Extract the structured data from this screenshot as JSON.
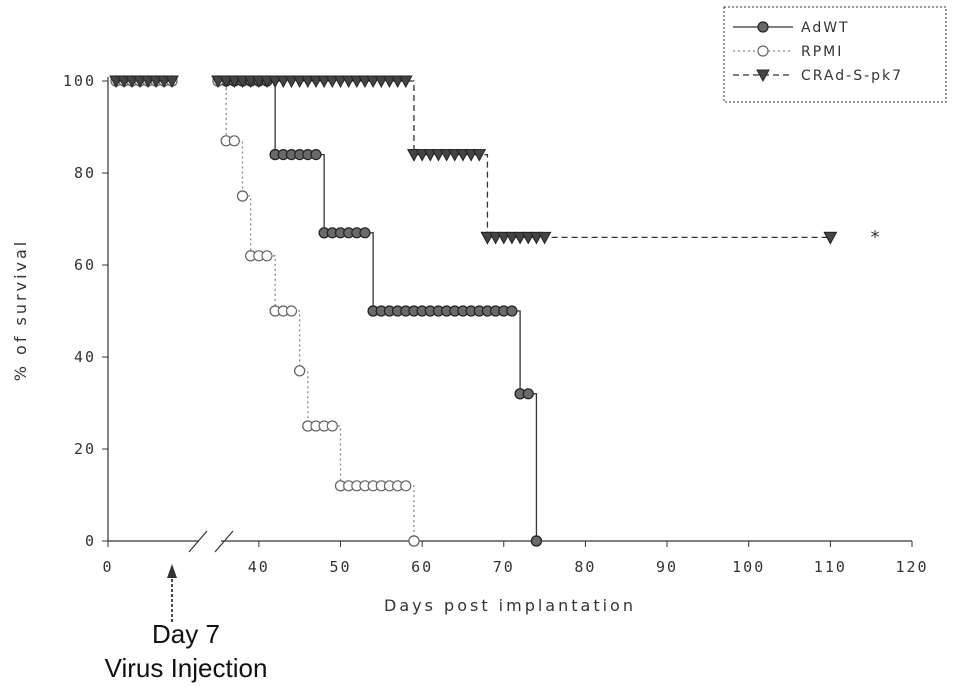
{
  "chart_data": {
    "type": "line",
    "title": "",
    "xlabel": "Days post implantation",
    "ylabel": "% of survival",
    "xlim": [
      0,
      120
    ],
    "ylim": [
      0,
      100
    ],
    "x_ticks": [
      0,
      40,
      50,
      60,
      70,
      80,
      90,
      100,
      110,
      120
    ],
    "y_ticks": [
      0,
      20,
      40,
      60,
      80,
      100
    ],
    "x_axis_break": "between 0 and 40",
    "grid": false,
    "legend": {
      "placement": "top-right",
      "entries": [
        "AdWT",
        "RPMI",
        "CRAd-S-pk7"
      ]
    },
    "series": [
      {
        "name": "AdWT",
        "style": "solid",
        "marker": "filled-circle",
        "color": "#333333",
        "steps": [
          [
            0,
            100
          ],
          [
            42,
            84
          ],
          [
            48,
            67
          ],
          [
            54,
            50
          ],
          [
            72,
            32
          ],
          [
            74,
            0
          ]
        ],
        "marker_x": [
          [
            1,
            8
          ],
          [
            35,
            42
          ],
          [
            42,
            48
          ],
          [
            48,
            54
          ],
          [
            54,
            72
          ],
          [
            72,
            73
          ],
          [
            74,
            74
          ]
        ]
      },
      {
        "name": "RPMI",
        "style": "dotted",
        "marker": "open-circle",
        "color": "#888888",
        "steps": [
          [
            0,
            100
          ],
          [
            36,
            87
          ],
          [
            38,
            75
          ],
          [
            39,
            62
          ],
          [
            42,
            50
          ],
          [
            45,
            37
          ],
          [
            46,
            25
          ],
          [
            50,
            12
          ],
          [
            59,
            0
          ]
        ],
        "marker_x": [
          [
            1,
            8
          ],
          [
            35,
            36
          ],
          [
            36,
            38
          ],
          [
            38,
            39
          ],
          [
            39,
            42
          ],
          [
            42,
            45
          ],
          [
            45,
            46
          ],
          [
            46,
            50
          ],
          [
            50,
            59
          ],
          [
            59,
            59
          ]
        ]
      },
      {
        "name": "CRAd-S-pk7",
        "style": "dashed",
        "marker": "filled-triangle-down",
        "color": "#333333",
        "steps": [
          [
            0,
            100
          ],
          [
            59,
            84
          ],
          [
            68,
            66
          ],
          [
            110,
            66
          ]
        ],
        "marker_x": [
          [
            1,
            8
          ],
          [
            35,
            59
          ],
          [
            59,
            68
          ],
          [
            68,
            75
          ],
          [
            110,
            110
          ]
        ]
      }
    ],
    "annotations": [
      {
        "text": "*",
        "x": 115,
        "y": 66
      },
      {
        "text": "Day 7",
        "x": 7
      },
      {
        "text": "Virus Injection",
        "x": 7
      }
    ]
  }
}
